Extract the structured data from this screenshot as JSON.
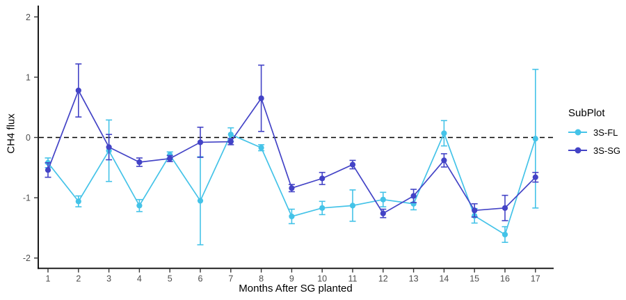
{
  "chart_data": {
    "type": "line",
    "title": "",
    "xlabel": "Months After SG planted",
    "ylabel": "CH4 flux",
    "x": [
      1,
      2,
      3,
      4,
      5,
      6,
      7,
      8,
      9,
      10,
      11,
      12,
      13,
      14,
      15,
      16,
      17
    ],
    "x_ticks": [
      "1",
      "2",
      "3",
      "4",
      "5",
      "6",
      "7",
      "8",
      "9",
      "10",
      "11",
      "12",
      "13",
      "14",
      "15",
      "16",
      "17"
    ],
    "y_ticks": [
      "2",
      "1",
      "0",
      "-1",
      "-2"
    ],
    "y_tick_values": [
      2,
      1,
      0,
      -1,
      -2
    ],
    "ylim": [
      -2.15,
      2.15
    ],
    "grid": false,
    "hline": {
      "y": 0,
      "style": "dashed",
      "color": "#000000"
    },
    "legend": {
      "title": "SubPlot",
      "position": "right"
    },
    "series": [
      {
        "name": "3S-FL",
        "color": "#44c3e8",
        "values": [
          -0.42,
          -1.06,
          -0.22,
          -1.13,
          -0.29,
          -1.05,
          0.05,
          -0.17,
          -1.31,
          -1.17,
          -1.13,
          -1.03,
          -1.1,
          0.07,
          -1.3,
          -1.61,
          -0.02
        ],
        "errors": [
          0.08,
          0.09,
          0.51,
          0.1,
          0.05,
          0.73,
          0.11,
          0.05,
          0.12,
          0.11,
          0.26,
          0.12,
          0.1,
          0.21,
          0.12,
          0.13,
          1.15
        ]
      },
      {
        "name": "3S-SG",
        "color": "#4343c6",
        "values": [
          -0.54,
          0.78,
          -0.16,
          -0.41,
          -0.35,
          -0.08,
          -0.07,
          0.65,
          -0.84,
          -0.68,
          -0.45,
          -1.26,
          -0.97,
          -0.38,
          -1.21,
          -1.17,
          -0.66
        ],
        "errors": [
          0.12,
          0.44,
          0.21,
          0.07,
          0.05,
          0.25,
          0.05,
          0.55,
          0.06,
          0.1,
          0.07,
          0.07,
          0.11,
          0.11,
          0.11,
          0.21,
          0.08
        ]
      }
    ]
  },
  "colors": {
    "axis": "#000000",
    "tick_label": "#4d4d4d",
    "background": "#ffffff"
  }
}
